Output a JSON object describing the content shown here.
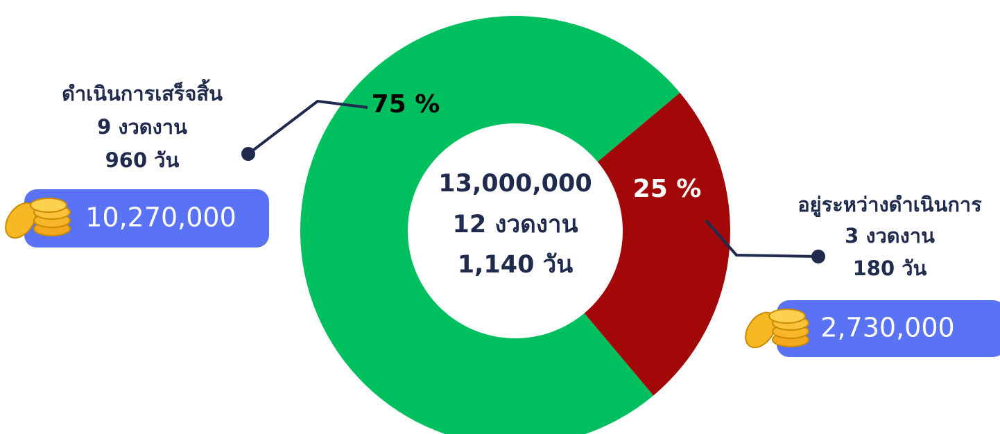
{
  "chart_data": {
    "type": "pie",
    "categories": [
      "ดำเนินการเสร็จสิ้น",
      "อยู่ระหว่างดำเนินการ"
    ],
    "values": [
      75,
      25
    ],
    "value_labels": [
      "75 %",
      "25 %"
    ],
    "colors": [
      "#00bf5f",
      "#a30808"
    ],
    "donut": true,
    "center_text": [
      "13,000,000",
      "12 งวดงาน",
      "1,140 วัน"
    ],
    "segment_details": [
      {
        "lines": [
          "9 งวดงาน",
          "960 วัน"
        ],
        "amount": "10,270,000"
      },
      {
        "lines": [
          "3 งวดงาน",
          "180 วัน"
        ],
        "amount": "2,730,000"
      }
    ]
  }
}
